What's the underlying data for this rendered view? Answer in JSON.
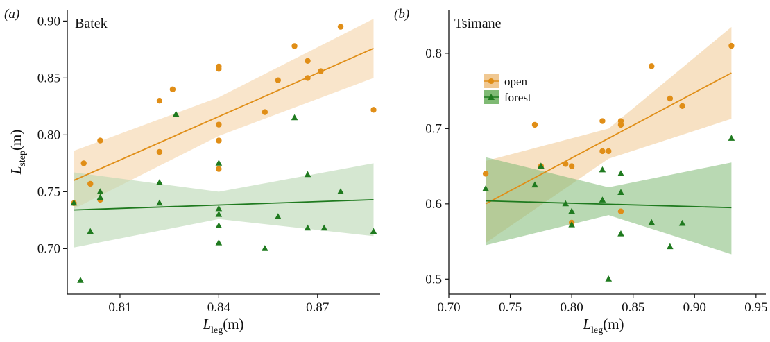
{
  "chart_data": [
    {
      "type": "scatter",
      "panel_label": "(a)",
      "title": "Batek",
      "xlabel": "L_leg(m)",
      "ylabel": "L_step(m)",
      "xlim": [
        0.794,
        0.889
      ],
      "ylim": [
        0.66,
        0.91
      ],
      "xticks": [
        0.81,
        0.84,
        0.87
      ],
      "xtick_labels": [
        "0.81",
        "0.84",
        "0.87"
      ],
      "yticks": [
        0.7,
        0.75,
        0.8,
        0.85,
        0.9
      ],
      "ytick_labels": [
        "0.70",
        "0.75",
        "0.80",
        "0.85",
        "0.90"
      ],
      "grid": false,
      "series": [
        {
          "name": "open",
          "color": "#E08E17",
          "band_color": "#F5D4A8",
          "marker": "circle",
          "points": [
            [
              0.796,
              0.74
            ],
            [
              0.799,
              0.775
            ],
            [
              0.801,
              0.757
            ],
            [
              0.804,
              0.743
            ],
            [
              0.804,
              0.795
            ],
            [
              0.822,
              0.785
            ],
            [
              0.822,
              0.83
            ],
            [
              0.826,
              0.84
            ],
            [
              0.84,
              0.86
            ],
            [
              0.84,
              0.858
            ],
            [
              0.84,
              0.809
            ],
            [
              0.84,
              0.795
            ],
            [
              0.84,
              0.77
            ],
            [
              0.854,
              0.82
            ],
            [
              0.858,
              0.848
            ],
            [
              0.863,
              0.878
            ],
            [
              0.867,
              0.865
            ],
            [
              0.867,
              0.85
            ],
            [
              0.871,
              0.856
            ],
            [
              0.877,
              0.895
            ],
            [
              0.887,
              0.822
            ]
          ],
          "fit": [
            [
              0.796,
              0.76
            ],
            [
              0.887,
              0.876
            ]
          ],
          "band_upper": [
            [
              0.796,
              0.786
            ],
            [
              0.84,
              0.833
            ],
            [
              0.887,
              0.902
            ]
          ],
          "band_lower": [
            [
              0.796,
              0.735
            ],
            [
              0.84,
              0.799
            ],
            [
              0.887,
              0.85
            ]
          ]
        },
        {
          "name": "forest",
          "color": "#1F7A1F",
          "band_color": "#B9D7B3",
          "marker": "triangle",
          "points": [
            [
              0.796,
              0.74
            ],
            [
              0.798,
              0.672
            ],
            [
              0.801,
              0.715
            ],
            [
              0.804,
              0.75
            ],
            [
              0.804,
              0.745
            ],
            [
              0.822,
              0.758
            ],
            [
              0.822,
              0.74
            ],
            [
              0.827,
              0.818
            ],
            [
              0.84,
              0.775
            ],
            [
              0.84,
              0.735
            ],
            [
              0.84,
              0.73
            ],
            [
              0.84,
              0.72
            ],
            [
              0.84,
              0.705
            ],
            [
              0.854,
              0.7
            ],
            [
              0.858,
              0.728
            ],
            [
              0.863,
              0.815
            ],
            [
              0.867,
              0.765
            ],
            [
              0.867,
              0.718
            ],
            [
              0.872,
              0.718
            ],
            [
              0.877,
              0.75
            ],
            [
              0.887,
              0.715
            ]
          ],
          "fit": [
            [
              0.796,
              0.734
            ],
            [
              0.887,
              0.743
            ]
          ],
          "band_upper": [
            [
              0.796,
              0.767
            ],
            [
              0.84,
              0.75
            ],
            [
              0.887,
              0.775
            ]
          ],
          "band_lower": [
            [
              0.796,
              0.701
            ],
            [
              0.84,
              0.726
            ],
            [
              0.887,
              0.711
            ]
          ]
        }
      ]
    },
    {
      "type": "scatter",
      "panel_label": "(b)",
      "title": "Tsimane",
      "xlabel": "L_leg(m)",
      "xlim": [
        0.7,
        0.958
      ],
      "ylim": [
        0.48,
        0.858
      ],
      "xticks": [
        0.7,
        0.75,
        0.8,
        0.85,
        0.9,
        0.95
      ],
      "xtick_labels": [
        "0.70",
        "0.75",
        "0.80",
        "0.85",
        "0.90",
        "0.95"
      ],
      "yticks": [
        0.5,
        0.6,
        0.7,
        0.8
      ],
      "ytick_labels": [
        "0.5",
        "0.6",
        "0.7",
        "0.8"
      ],
      "grid": false,
      "legend": {
        "position": "top-left",
        "labels": [
          "open",
          "forest"
        ]
      },
      "series": [
        {
          "name": "open",
          "color": "#E08E17",
          "band_color": "#F0C892",
          "marker": "circle",
          "points": [
            [
              0.73,
              0.64
            ],
            [
              0.77,
              0.705
            ],
            [
              0.775,
              0.65
            ],
            [
              0.795,
              0.653
            ],
            [
              0.8,
              0.65
            ],
            [
              0.8,
              0.575
            ],
            [
              0.825,
              0.71
            ],
            [
              0.825,
              0.67
            ],
            [
              0.83,
              0.67
            ],
            [
              0.84,
              0.71
            ],
            [
              0.84,
              0.705
            ],
            [
              0.84,
              0.59
            ],
            [
              0.865,
              0.783
            ],
            [
              0.88,
              0.74
            ],
            [
              0.89,
              0.73
            ],
            [
              0.93,
              0.81
            ]
          ],
          "fit": [
            [
              0.73,
              0.6
            ],
            [
              0.93,
              0.774
            ]
          ],
          "band_upper": [
            [
              0.73,
              0.657
            ],
            [
              0.83,
              0.7
            ],
            [
              0.93,
              0.835
            ]
          ],
          "band_lower": [
            [
              0.73,
              0.548
            ],
            [
              0.83,
              0.66
            ],
            [
              0.93,
              0.713
            ]
          ]
        },
        {
          "name": "forest",
          "color": "#1F7A1F",
          "band_color": "#7FBA74",
          "marker": "triangle",
          "points": [
            [
              0.73,
              0.62
            ],
            [
              0.77,
              0.625
            ],
            [
              0.775,
              0.65
            ],
            [
              0.795,
              0.6
            ],
            [
              0.8,
              0.59
            ],
            [
              0.8,
              0.572
            ],
            [
              0.825,
              0.645
            ],
            [
              0.825,
              0.605
            ],
            [
              0.83,
              0.5
            ],
            [
              0.84,
              0.64
            ],
            [
              0.84,
              0.615
            ],
            [
              0.84,
              0.56
            ],
            [
              0.865,
              0.575
            ],
            [
              0.88,
              0.543
            ],
            [
              0.89,
              0.574
            ],
            [
              0.93,
              0.687
            ]
          ],
          "fit": [
            [
              0.73,
              0.604
            ],
            [
              0.93,
              0.595
            ]
          ],
          "band_upper": [
            [
              0.73,
              0.662
            ],
            [
              0.83,
              0.622
            ],
            [
              0.93,
              0.655
            ]
          ],
          "band_lower": [
            [
              0.73,
              0.545
            ],
            [
              0.83,
              0.585
            ],
            [
              0.93,
              0.533
            ]
          ]
        }
      ]
    }
  ]
}
